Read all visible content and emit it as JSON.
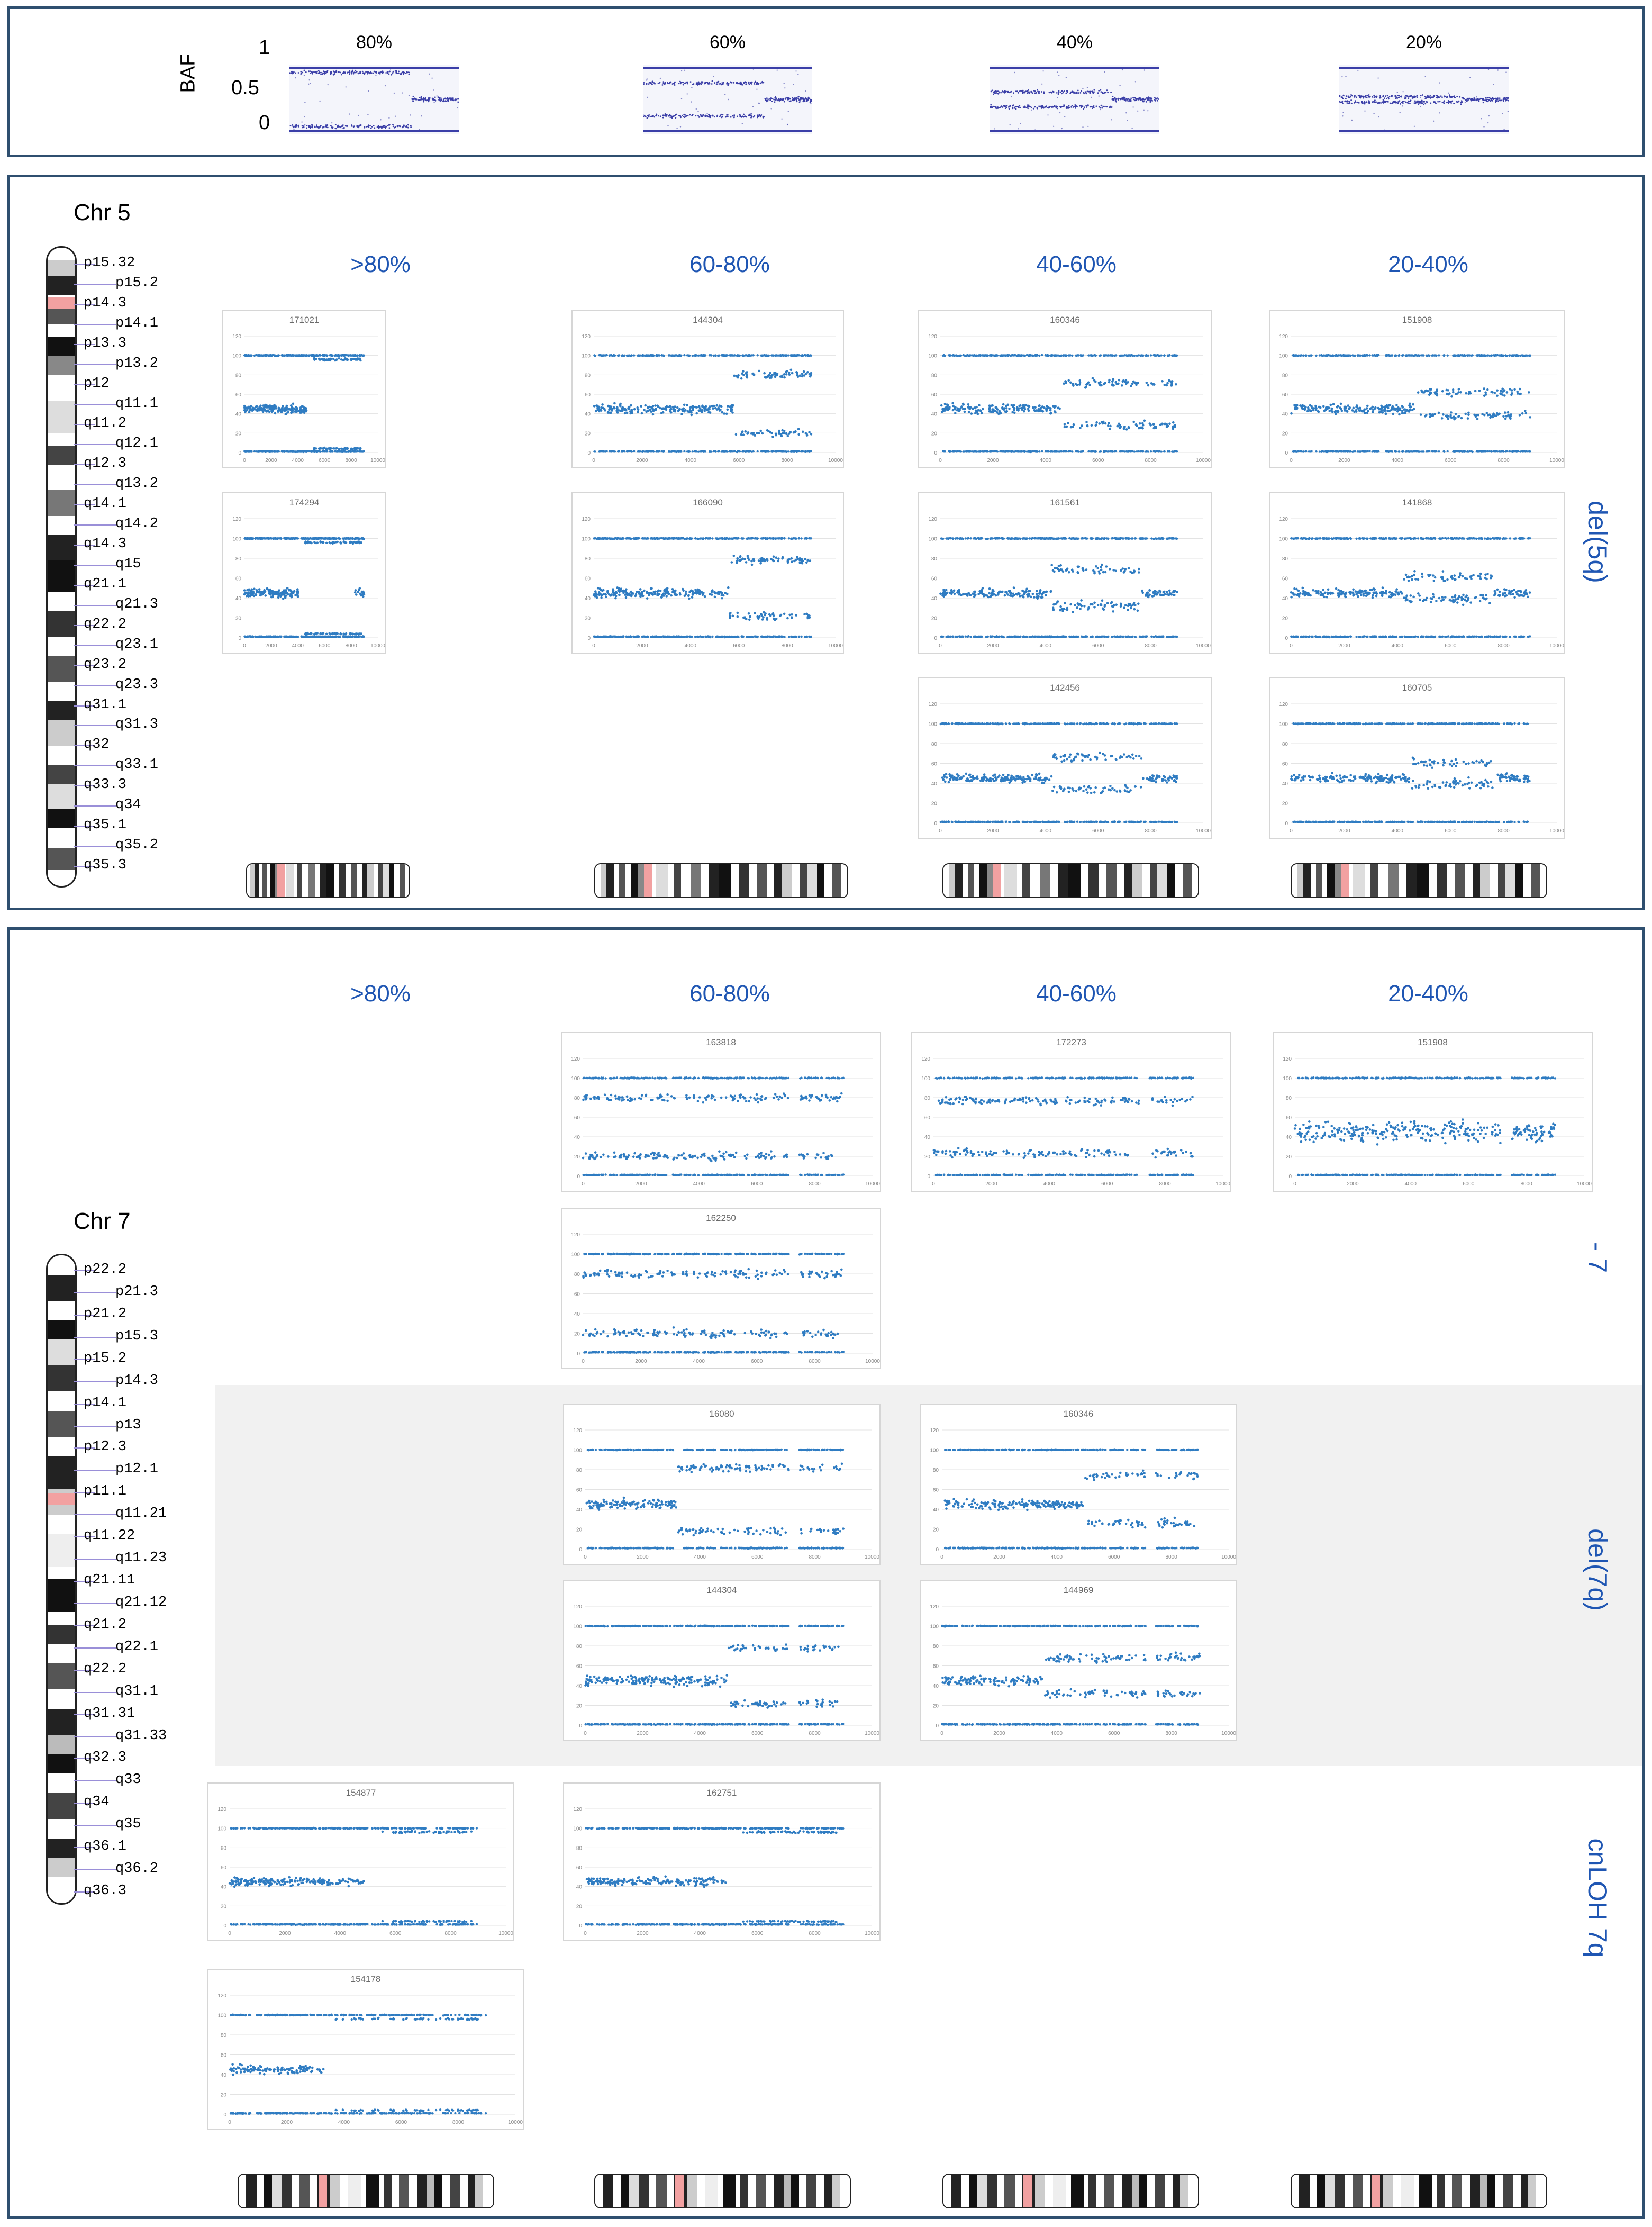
{
  "baf_panel": {
    "axis_label": "BAF",
    "ticks": [
      "1",
      "0.5",
      "0"
    ],
    "percents": [
      "80%",
      "60%",
      "40%",
      "20%"
    ]
  },
  "chr5": {
    "title": "Chr 5",
    "bands": [
      "p15.32",
      "p15.2",
      "p14.3",
      "p14.1",
      "p13.3",
      "p13.2",
      "p12",
      "q11.1",
      "q11.2",
      "q12.1",
      "q12.3",
      "q13.2",
      "q14.1",
      "q14.2",
      "q14.3",
      "q15",
      "q21.1",
      "q21.3",
      "q22.2",
      "q23.1",
      "q23.2",
      "q23.3",
      "q31.1",
      "q31.3",
      "q32",
      "q33.1",
      "q33.3",
      "q34",
      "q35.1",
      "q35.2",
      "q35.3"
    ],
    "columns": [
      ">80%",
      "60-80%",
      "40-60%",
      "20-40%"
    ],
    "row_label": "del(5q)"
  },
  "chr7": {
    "title": "Chr 7",
    "bands": [
      "p22.2",
      "p21.3",
      "p21.2",
      "p15.3",
      "p15.2",
      "p14.3",
      "p14.1",
      "p13",
      "p12.3",
      "p12.1",
      "p11.1",
      "q11.21",
      "q11.22",
      "q11.23",
      "q21.11",
      "q21.12",
      "q21.2",
      "q22.1",
      "q22.2",
      "q31.1",
      "q31.31",
      "q31.33",
      "q32.3",
      "q33",
      "q34",
      "q35",
      "q36.1",
      "q36.2",
      "q36.3"
    ],
    "columns": [
      ">80%",
      "60-80%",
      "40-60%",
      "20-40%"
    ],
    "row_labels": [
      "- 7",
      "del(7q)",
      "cnLOH 7q"
    ]
  },
  "mini_plots": {
    "y_ticks": [
      "0",
      "20",
      "40",
      "60",
      "80",
      "100",
      "120"
    ],
    "x_ticks": [
      "0",
      "2000",
      "4000",
      "6000",
      "8000",
      "10000"
    ],
    "samples": {
      "c5_1": "171021",
      "c5_2": "144304",
      "c5_3": "160346",
      "c5_4": "151908",
      "c5_5": "174294",
      "c5_6": "166090",
      "c5_7": "161561",
      "c5_8": "141868",
      "c5_9": "142456",
      "c5_10": "160705",
      "c7_1": "163818",
      "c7_2": "172273",
      "c7_3": "151908",
      "c7_4": "162250",
      "c7_5": "16080",
      "c7_6": "160346",
      "c7_7": "144304",
      "c7_8": "144969",
      "c7_9": "154877",
      "c7_10": "162751",
      "c7_11": "154178"
    }
  },
  "colors": {
    "accent_blue": "#1f56b3",
    "dot_blue": "#2f7cc2",
    "baf_dot": "#3b3fa8",
    "centromere": "#f2a1a1"
  }
}
